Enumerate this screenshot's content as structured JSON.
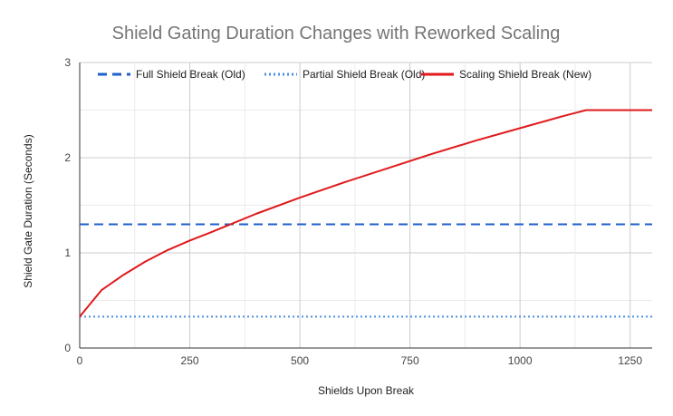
{
  "chart_data": {
    "type": "line",
    "title": "Shield Gating Duration Changes with Reworked Scaling",
    "xlabel": "Shields Upon Break",
    "ylabel": "Shield Gate Duration (Seconds)",
    "xlim": [
      0,
      1300
    ],
    "ylim": [
      0,
      3
    ],
    "x_ticks": [
      0,
      250,
      500,
      750,
      1000,
      1250
    ],
    "y_ticks": [
      0,
      1,
      2,
      3
    ],
    "x_tick_labels": [
      "0",
      "250",
      "500",
      "750",
      "1000",
      "1250"
    ],
    "y_tick_labels": [
      "0",
      "1",
      "2",
      "3"
    ],
    "grid": true,
    "legend_position": "top",
    "series": [
      {
        "name": "Full Shield Break (Old)",
        "color": "#1f5fc9",
        "style": "dashed",
        "x": [
          0,
          1300
        ],
        "y": [
          1.3,
          1.3
        ]
      },
      {
        "name": "Partial Shield Break (Old)",
        "color": "#4a90e2",
        "style": "dotted",
        "x": [
          0,
          1300
        ],
        "y": [
          0.33,
          0.33
        ]
      },
      {
        "name": "Scaling Shield Break (New)",
        "color": "#e0191b",
        "style": "solid",
        "x": [
          0,
          50,
          100,
          150,
          200,
          250,
          300,
          400,
          500,
          600,
          700,
          800,
          900,
          1000,
          1100,
          1150,
          1300
        ],
        "y": [
          0.33,
          0.61,
          0.77,
          0.91,
          1.03,
          1.13,
          1.22,
          1.41,
          1.58,
          1.74,
          1.89,
          2.04,
          2.18,
          2.31,
          2.44,
          2.5,
          2.5
        ]
      }
    ]
  }
}
